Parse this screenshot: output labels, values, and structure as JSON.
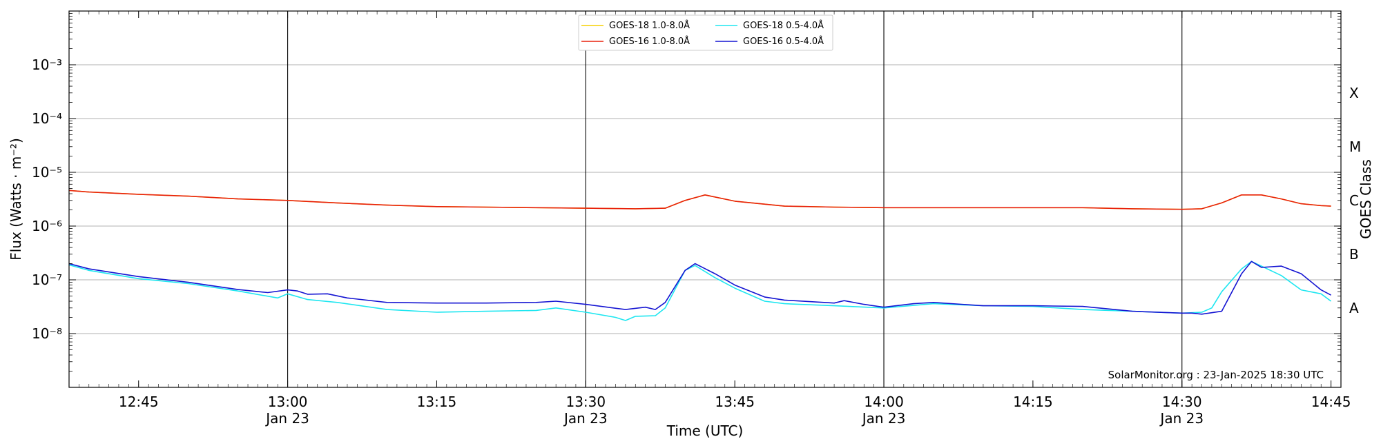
{
  "chart_data": {
    "type": "line",
    "xlabel": "Time (UTC)",
    "ylabel": "Flux (Watts · m⁻²)",
    "right_label": "GOES Class",
    "watermark": "SolarMonitor.org : 23-Jan-2025 18:30 UTC",
    "yscale": "log",
    "ylim": [
      1e-09,
      0.01
    ],
    "xlim": [
      "12:38",
      "14:46"
    ],
    "grid": "horizontal",
    "legend_position": "top-center",
    "x_ticks": [
      {
        "time": "12:45",
        "label": "12:45",
        "sub": ""
      },
      {
        "time": "13:00",
        "label": "13:00",
        "sub": "Jan 23"
      },
      {
        "time": "13:15",
        "label": "13:15",
        "sub": ""
      },
      {
        "time": "13:30",
        "label": "13:30",
        "sub": "Jan 23"
      },
      {
        "time": "13:45",
        "label": "13:45",
        "sub": ""
      },
      {
        "time": "14:00",
        "label": "14:00",
        "sub": "Jan 23"
      },
      {
        "time": "14:15",
        "label": "14:15",
        "sub": ""
      },
      {
        "time": "14:30",
        "label": "14:30",
        "sub": "Jan 23"
      },
      {
        "time": "14:45",
        "label": "14:45",
        "sub": ""
      }
    ],
    "y_ticks": [
      {
        "exp": -8,
        "label": "10⁻⁸"
      },
      {
        "exp": -7,
        "label": "10⁻⁷"
      },
      {
        "exp": -6,
        "label": "10⁻⁶"
      },
      {
        "exp": -5,
        "label": "10⁻⁵"
      },
      {
        "exp": -4,
        "label": "10⁻⁴"
      },
      {
        "exp": -3,
        "label": "10⁻³"
      }
    ],
    "class_labels": [
      {
        "label": "A",
        "value": 3e-08
      },
      {
        "label": "B",
        "value": 3e-07
      },
      {
        "label": "C",
        "value": 3e-06
      },
      {
        "label": "M",
        "value": 3e-05
      },
      {
        "label": "X",
        "value": 0.0003
      }
    ],
    "vertical_lines": [
      "13:00",
      "13:30",
      "14:00",
      "14:30"
    ],
    "series": [
      {
        "name": "GOES-18 1.0-8.0Å",
        "color": "#f5d000",
        "x": [
          "12:38",
          "12:40",
          "12:45",
          "12:50",
          "12:55",
          "13:00",
          "13:05",
          "13:10",
          "13:15",
          "13:20",
          "13:25",
          "13:30",
          "13:35",
          "13:38",
          "13:40",
          "13:42",
          "13:45",
          "13:50",
          "13:55",
          "14:00",
          "14:05",
          "14:10",
          "14:15",
          "14:20",
          "14:25",
          "14:30",
          "14:32",
          "14:34",
          "14:36",
          "14:38",
          "14:40",
          "14:42",
          "14:44",
          "14:45"
        ],
        "y": [
          4.6e-06,
          4.3e-06,
          3.9e-06,
          3.6e-06,
          3.2e-06,
          3e-06,
          2.7e-06,
          2.45e-06,
          2.3e-06,
          2.25e-06,
          2.2e-06,
          2.15e-06,
          2.1e-06,
          2.15e-06,
          3e-06,
          3.8e-06,
          2.9e-06,
          2.35e-06,
          2.25e-06,
          2.2e-06,
          2.2e-06,
          2.2e-06,
          2.2e-06,
          2.2e-06,
          2.1e-06,
          2.05e-06,
          2.1e-06,
          2.7e-06,
          3.8e-06,
          3.8e-06,
          3.2e-06,
          2.6e-06,
          2.4e-06,
          2.35e-06
        ]
      },
      {
        "name": "GOES-16 1.0-8.0Å",
        "color": "#e8200c",
        "x": [
          "12:38",
          "12:40",
          "12:45",
          "12:50",
          "12:55",
          "13:00",
          "13:05",
          "13:10",
          "13:15",
          "13:20",
          "13:25",
          "13:30",
          "13:35",
          "13:38",
          "13:40",
          "13:42",
          "13:45",
          "13:50",
          "13:55",
          "14:00",
          "14:05",
          "14:10",
          "14:15",
          "14:20",
          "14:25",
          "14:30",
          "14:32",
          "14:34",
          "14:36",
          "14:38",
          "14:40",
          "14:42",
          "14:44",
          "14:45"
        ],
        "y": [
          4.6e-06,
          4.3e-06,
          3.9e-06,
          3.6e-06,
          3.2e-06,
          3e-06,
          2.7e-06,
          2.45e-06,
          2.3e-06,
          2.25e-06,
          2.2e-06,
          2.15e-06,
          2.1e-06,
          2.15e-06,
          3e-06,
          3.8e-06,
          2.9e-06,
          2.35e-06,
          2.25e-06,
          2.2e-06,
          2.2e-06,
          2.2e-06,
          2.2e-06,
          2.2e-06,
          2.1e-06,
          2.05e-06,
          2.1e-06,
          2.7e-06,
          3.8e-06,
          3.8e-06,
          3.2e-06,
          2.6e-06,
          2.4e-06,
          2.35e-06
        ]
      },
      {
        "name": "GOES-18 0.5-4.0Å",
        "color": "#1ee6f0",
        "x": [
          "12:38",
          "12:40",
          "12:45",
          "12:50",
          "12:55",
          "12:59",
          "13:00",
          "13:02",
          "13:05",
          "13:10",
          "13:15",
          "13:20",
          "13:25",
          "13:27",
          "13:30",
          "13:33",
          "13:34",
          "13:35",
          "13:37",
          "13:38",
          "13:40",
          "13:41",
          "13:43",
          "13:45",
          "13:48",
          "13:50",
          "13:55",
          "14:00",
          "14:05",
          "14:10",
          "14:15",
          "14:20",
          "14:25",
          "14:30",
          "14:32",
          "14:33",
          "14:34",
          "14:36",
          "14:37",
          "14:38",
          "14:40",
          "14:42",
          "14:44",
          "14:45"
        ],
        "y": [
          1.9e-07,
          1.5e-07,
          1.05e-07,
          8.5e-08,
          6.2e-08,
          4.6e-08,
          5.5e-08,
          4.3e-08,
          3.8e-08,
          2.8e-08,
          2.5e-08,
          2.6e-08,
          2.7e-08,
          3e-08,
          2.5e-08,
          2e-08,
          1.75e-08,
          2.1e-08,
          2.15e-08,
          3e-08,
          1.5e-07,
          1.85e-07,
          1.1e-07,
          7e-08,
          4e-08,
          3.6e-08,
          3.3e-08,
          3e-08,
          3.6e-08,
          3.3e-08,
          3.2e-08,
          2.8e-08,
          2.6e-08,
          2.4e-08,
          2.5e-08,
          3e-08,
          6e-08,
          1.6e-07,
          2.2e-07,
          1.8e-07,
          1.2e-07,
          6.5e-08,
          5.5e-08,
          4e-08
        ]
      },
      {
        "name": "GOES-16 0.5-4.0Å",
        "color": "#1414d2",
        "x": [
          "12:38",
          "12:40",
          "12:45",
          "12:50",
          "12:55",
          "12:58",
          "13:00",
          "13:01",
          "13:02",
          "13:04",
          "13:06",
          "13:10",
          "13:15",
          "13:20",
          "13:25",
          "13:27",
          "13:30",
          "13:34",
          "13:36",
          "13:37",
          "13:38",
          "13:40",
          "13:41",
          "13:43",
          "13:45",
          "13:48",
          "13:50",
          "13:55",
          "13:56",
          "13:58",
          "14:00",
          "14:03",
          "14:05",
          "14:10",
          "14:15",
          "14:20",
          "14:25",
          "14:30",
          "14:31",
          "14:32",
          "14:34",
          "14:36",
          "14:37",
          "14:38",
          "14:40",
          "14:42",
          "14:44",
          "14:45"
        ],
        "y": [
          2e-07,
          1.6e-07,
          1.15e-07,
          9e-08,
          6.6e-08,
          5.8e-08,
          6.5e-08,
          6.2e-08,
          5.4e-08,
          5.5e-08,
          4.6e-08,
          3.8e-08,
          3.7e-08,
          3.7e-08,
          3.8e-08,
          4e-08,
          3.5e-08,
          2.8e-08,
          3.1e-08,
          2.8e-08,
          3.8e-08,
          1.5e-07,
          2e-07,
          1.3e-07,
          8e-08,
          4.8e-08,
          4.2e-08,
          3.7e-08,
          4.1e-08,
          3.5e-08,
          3.1e-08,
          3.6e-08,
          3.8e-08,
          3.3e-08,
          3.3e-08,
          3.2e-08,
          2.6e-08,
          2.4e-08,
          2.4e-08,
          2.3e-08,
          2.6e-08,
          1.3e-07,
          2.2e-07,
          1.7e-07,
          1.8e-07,
          1.3e-07,
          6.5e-08,
          5.2e-08
        ]
      }
    ]
  }
}
